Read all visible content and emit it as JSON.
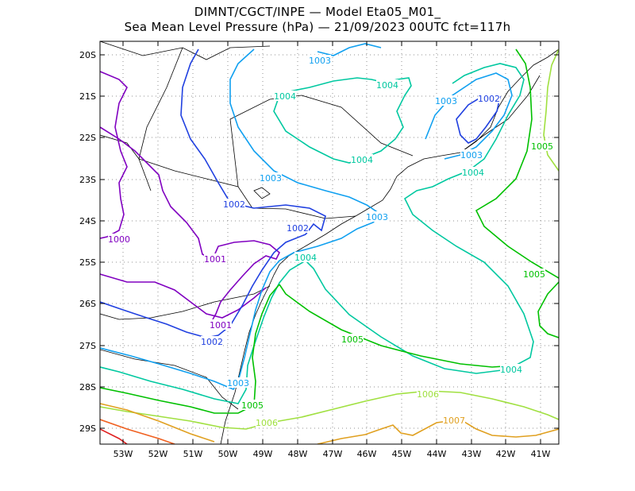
{
  "title_line1": "DIMNT/CGCT/INPE —   Model Eta05_M01_",
  "title_line2": "Sea Mean Level Pressure (hPa) — 21/09/2023 00UTC fct=117h",
  "lat_ticks": [
    "20S",
    "21S",
    "22S",
    "23S",
    "24S",
    "25S",
    "26S",
    "27S",
    "28S",
    "29S"
  ],
  "lon_ticks": [
    "53W",
    "52W",
    "51W",
    "50W",
    "49W",
    "48W",
    "47W",
    "46W",
    "45W",
    "44W",
    "43W",
    "42W",
    "41W"
  ],
  "colors": {
    "1000": "#8000c0",
    "1001": "#8000c0",
    "1002": "#2040e0",
    "1003": "#10a0f0",
    "1004": "#00c8a0",
    "1005": "#00c000",
    "1006": "#a0e040",
    "1007": "#e0a020",
    "1008": "#f06020",
    "1009": "#e02020",
    "coast": "#000000",
    "grid": "#909090"
  },
  "contour_labels": [
    {
      "text": "1003",
      "level": "1003"
    },
    {
      "text": "1004",
      "level": "1004"
    },
    {
      "text": "1003",
      "level": "1003"
    },
    {
      "text": "1002",
      "level": "1002"
    },
    {
      "text": "1004",
      "level": "1004"
    },
    {
      "text": "1005",
      "level": "1005"
    },
    {
      "text": "1004",
      "level": "1004"
    },
    {
      "text": "1003",
      "level": "1003"
    },
    {
      "text": "1004",
      "level": "1004"
    },
    {
      "text": "1003",
      "level": "1003"
    },
    {
      "text": "1002",
      "level": "1002"
    },
    {
      "text": "1002",
      "level": "1002"
    },
    {
      "text": "1003",
      "level": "1003"
    },
    {
      "text": "1004",
      "level": "1004"
    },
    {
      "text": "1000",
      "level": "1000"
    },
    {
      "text": "1001",
      "level": "1001"
    },
    {
      "text": "1005",
      "level": "1005"
    },
    {
      "text": "1001",
      "level": "1001"
    },
    {
      "text": "1002",
      "level": "1002"
    },
    {
      "text": "1005",
      "level": "1005"
    },
    {
      "text": "1004",
      "level": "1004"
    },
    {
      "text": "1003",
      "level": "1003"
    },
    {
      "text": "1006",
      "level": "1006"
    },
    {
      "text": "1005",
      "level": "1005"
    },
    {
      "text": "1007",
      "level": "1007"
    },
    {
      "text": "1006",
      "level": "1006"
    }
  ]
}
